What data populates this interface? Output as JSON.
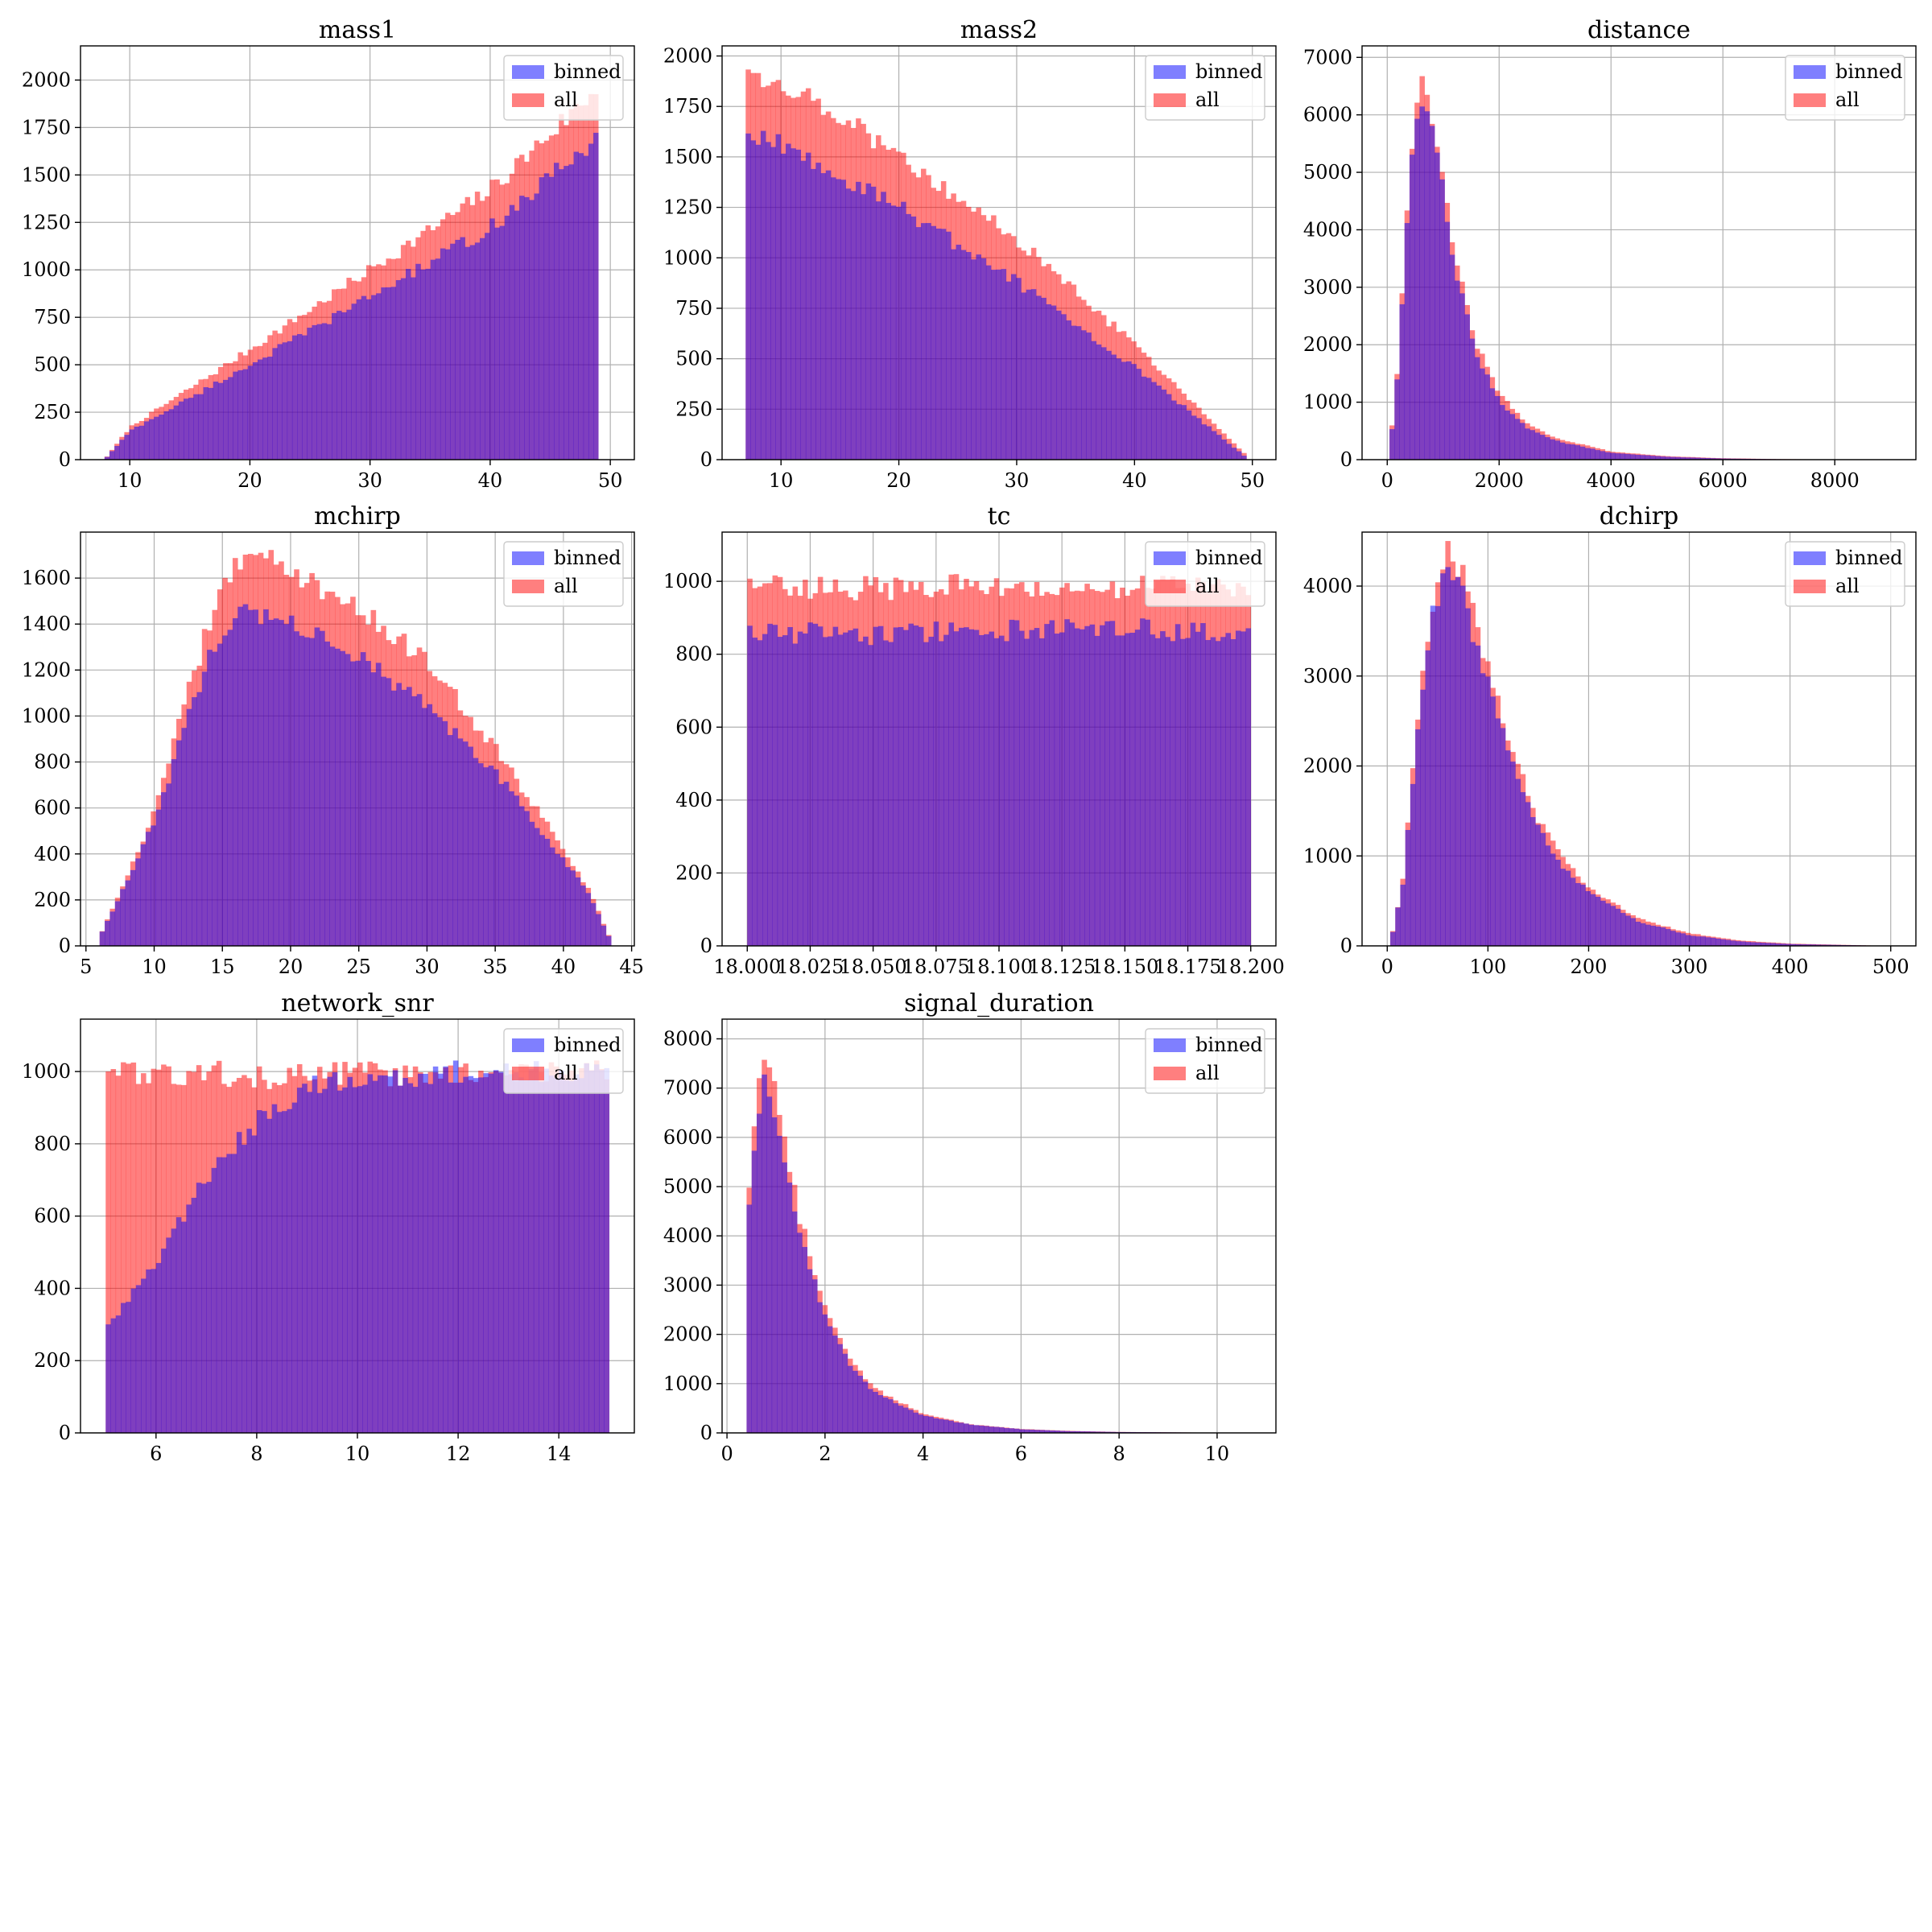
{
  "colors": {
    "binned": "#0000ff",
    "all": "#ff0000",
    "alpha": 0.5
  },
  "legend": {
    "placement": "top-right",
    "entries": [
      "binned",
      "all"
    ]
  },
  "chart_data": [
    {
      "type": "bar",
      "title": "mass1",
      "grid": true,
      "x": [
        7.9,
        10,
        20,
        30,
        40,
        49
      ],
      "series": [
        {
          "name": "all",
          "values": [
            0,
            170,
            580,
            1000,
            1420,
            1960
          ]
        },
        {
          "name": "binned",
          "values": [
            0,
            150,
            500,
            860,
            1220,
            1700
          ]
        }
      ],
      "xlim": [
        5.9,
        52
      ],
      "ylim": [
        0,
        2180
      ],
      "xticks": [
        10,
        20,
        30,
        40,
        50
      ],
      "yticks": [
        0,
        250,
        500,
        750,
        1000,
        1250,
        1500,
        1750,
        2000
      ]
    },
    {
      "type": "bar",
      "title": "mass2",
      "grid": true,
      "x": [
        7,
        10,
        20,
        30,
        40,
        49.5
      ],
      "series": [
        {
          "name": "all",
          "values": [
            1920,
            1880,
            1520,
            1090,
            570,
            20
          ]
        },
        {
          "name": "binned",
          "values": [
            1600,
            1560,
            1250,
            880,
            460,
            10
          ]
        }
      ],
      "xlim": [
        5,
        52
      ],
      "ylim": [
        0,
        2050
      ],
      "xticks": [
        10,
        20,
        30,
        40,
        50
      ],
      "yticks": [
        0,
        250,
        500,
        750,
        1000,
        1250,
        1500,
        1750,
        2000
      ]
    },
    {
      "type": "bar",
      "title": "distance",
      "grid": true,
      "x": [
        40,
        200,
        400,
        650,
        900,
        1200,
        1600,
        2000,
        2500,
        3000,
        4000,
        5000,
        6000,
        7000,
        8000,
        9000
      ],
      "series": [
        {
          "name": "all",
          "values": [
            100,
            1800,
            5200,
            6800,
            5500,
            3600,
            2000,
            1150,
            620,
            380,
            140,
            60,
            25,
            10,
            5,
            0
          ]
        },
        {
          "name": "binned",
          "values": [
            100,
            1700,
            5000,
            6500,
            5200,
            3400,
            1850,
            1000,
            550,
            330,
            120,
            50,
            20,
            8,
            4,
            0
          ]
        }
      ],
      "xlim": [
        -450,
        9450
      ],
      "ylim": [
        0,
        7200
      ],
      "xticks": [
        0,
        2000,
        4000,
        6000,
        8000
      ],
      "yticks": [
        0,
        1000,
        2000,
        3000,
        4000,
        5000,
        6000,
        7000
      ]
    },
    {
      "type": "bar",
      "title": "mchirp",
      "grid": true,
      "x": [
        6,
        8,
        10,
        12,
        14,
        16,
        18,
        20,
        25,
        30,
        35,
        40,
        42,
        43.5
      ],
      "series": [
        {
          "name": "all",
          "values": [
            40,
            300,
            580,
            1000,
            1400,
            1660,
            1680,
            1640,
            1470,
            1240,
            860,
            420,
            230,
            20
          ]
        },
        {
          "name": "binned",
          "values": [
            40,
            280,
            540,
            900,
            1250,
            1450,
            1440,
            1400,
            1250,
            1050,
            750,
            380,
            210,
            20
          ]
        }
      ],
      "xlim": [
        4.6,
        45.2
      ],
      "ylim": [
        0,
        1800
      ],
      "xticks": [
        5,
        10,
        15,
        20,
        25,
        30,
        35,
        40,
        45
      ],
      "yticks": [
        0,
        200,
        400,
        600,
        800,
        1000,
        1200,
        1400,
        1600
      ]
    },
    {
      "type": "bar",
      "title": "tc",
      "grid": true,
      "x": [
        18.0,
        18.05,
        18.1,
        18.15,
        18.2
      ],
      "series": [
        {
          "name": "all",
          "values": [
            990,
            980,
            990,
            985,
            980
          ]
        },
        {
          "name": "binned",
          "values": [
            860,
            855,
            865,
            870,
            860
          ]
        }
      ],
      "xlim": [
        17.99,
        18.21
      ],
      "ylim": [
        0,
        1135
      ],
      "xticks": [
        18.0,
        18.025,
        18.05,
        18.075,
        18.1,
        18.125,
        18.15,
        18.175,
        18.2
      ],
      "xticklabels": [
        "18.000",
        "18.025",
        "18.050",
        "18.075",
        "18.100",
        "18.125",
        "18.150",
        "18.175",
        "18.200"
      ],
      "yticks": [
        0,
        200,
        400,
        600,
        800,
        1000
      ]
    },
    {
      "type": "bar",
      "title": "dchirp",
      "grid": true,
      "x": [
        3,
        15,
        30,
        45,
        60,
        75,
        90,
        110,
        130,
        150,
        175,
        200,
        250,
        300,
        350,
        400,
        500
      ],
      "series": [
        {
          "name": "all",
          "values": [
            30,
            700,
            2500,
            3800,
            4400,
            4100,
            3500,
            2700,
            2000,
            1400,
            950,
            650,
            300,
            140,
            60,
            25,
            0
          ]
        },
        {
          "name": "binned",
          "values": [
            30,
            650,
            2400,
            3700,
            4200,
            3900,
            3300,
            2500,
            1850,
            1300,
            880,
            600,
            270,
            120,
            50,
            20,
            0
          ]
        }
      ],
      "xlim": [
        -25,
        525
      ],
      "ylim": [
        0,
        4600
      ],
      "xticks": [
        0,
        100,
        200,
        300,
        400,
        500
      ],
      "yticks": [
        0,
        1000,
        2000,
        3000,
        4000
      ]
    },
    {
      "type": "bar",
      "title": "network_snr",
      "grid": true,
      "x": [
        5,
        6,
        7,
        8,
        9,
        10,
        11,
        12,
        13,
        14,
        15
      ],
      "series": [
        {
          "name": "all",
          "values": [
            1000,
            990,
            1000,
            980,
            990,
            1000,
            990,
            1000,
            1000,
            1000,
            1000
          ]
        },
        {
          "name": "binned",
          "values": [
            290,
            470,
            710,
            860,
            960,
            990,
            990,
            1000,
            1000,
            1000,
            1000
          ]
        }
      ],
      "xlim": [
        4.5,
        15.5
      ],
      "ylim": [
        0,
        1145
      ],
      "xticks": [
        6,
        8,
        10,
        12,
        14
      ],
      "yticks": [
        0,
        200,
        400,
        600,
        800,
        1000
      ]
    },
    {
      "type": "bar",
      "title": "signal_duration",
      "grid": true,
      "x": [
        0.4,
        0.6,
        0.8,
        1.0,
        1.2,
        1.5,
        2.0,
        2.5,
        3.0,
        4.0,
        5.0,
        6.0,
        7.0,
        8.0,
        10.0,
        10.7
      ],
      "series": [
        {
          "name": "all",
          "values": [
            4100,
            7000,
            8000,
            7000,
            5800,
            4300,
            2600,
            1500,
            900,
            380,
            170,
            80,
            40,
            20,
            5,
            0
          ]
        },
        {
          "name": "binned",
          "values": [
            3800,
            6500,
            7200,
            6300,
            5300,
            4000,
            2400,
            1400,
            830,
            350,
            160,
            75,
            35,
            18,
            5,
            0
          ]
        }
      ],
      "xlim": [
        -0.1,
        11.2
      ],
      "ylim": [
        0,
        8400
      ],
      "xticks": [
        0,
        2,
        4,
        6,
        8,
        10
      ],
      "yticks": [
        0,
        1000,
        2000,
        3000,
        4000,
        5000,
        6000,
        7000,
        8000
      ]
    }
  ]
}
